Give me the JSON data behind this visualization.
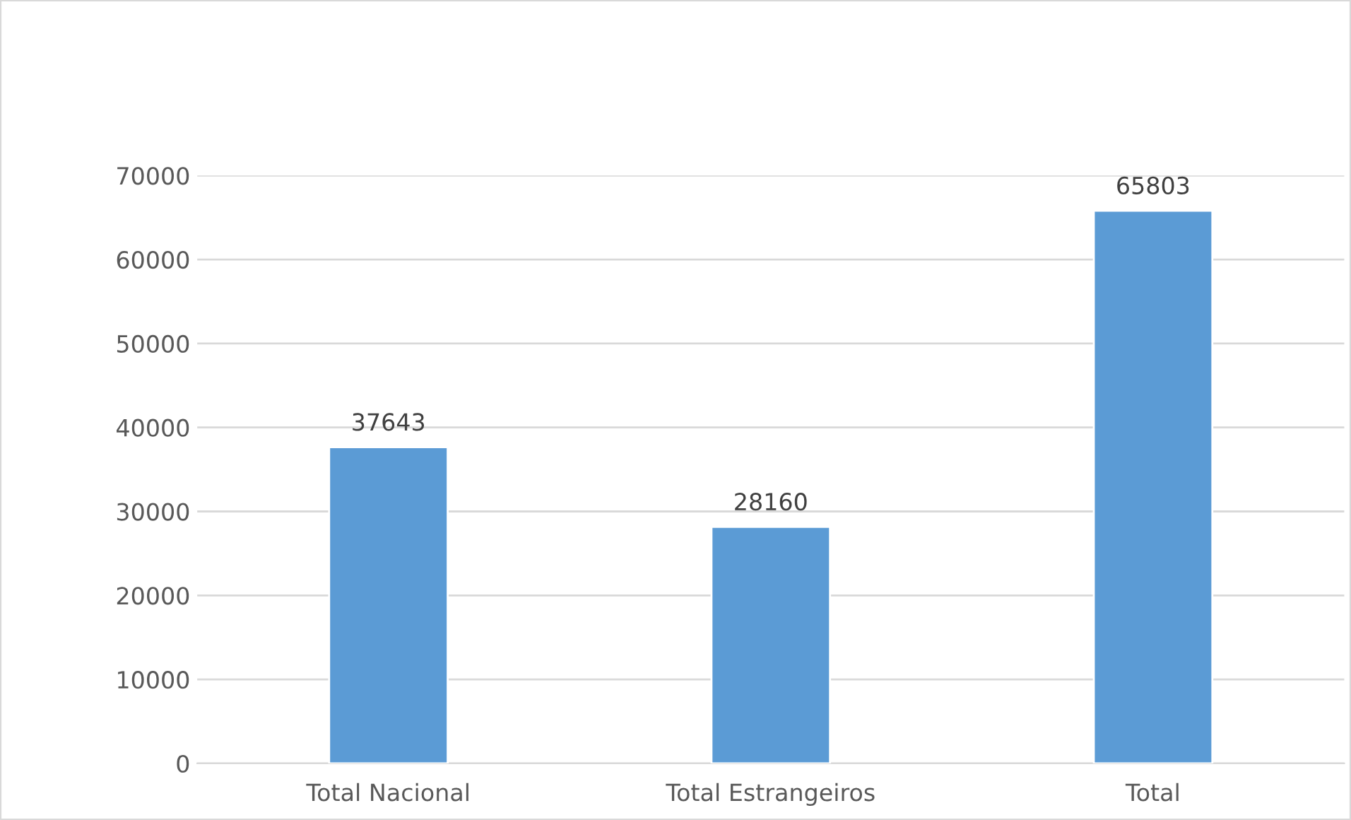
{
  "chart_data": {
    "type": "bar",
    "categories": [
      "Total Nacional",
      "Total Estrangeiros",
      "Total"
    ],
    "values": [
      37643,
      28160,
      65803
    ],
    "color": "#5b9bd5",
    "ylim": [
      0,
      70000
    ],
    "yticks": [
      0,
      10000,
      20000,
      30000,
      40000,
      50000,
      60000,
      70000
    ],
    "grid": "y",
    "data_labels": true
  }
}
